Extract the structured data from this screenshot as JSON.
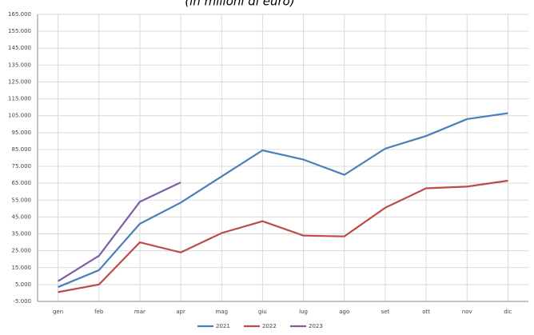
{
  "chart_data": {
    "type": "line",
    "title": "(in milioni di euro)",
    "categories": [
      "gen",
      "feb",
      "mar",
      "apr",
      "mag",
      "giu",
      "lug",
      "ago",
      "set",
      "ott",
      "nov",
      "dic"
    ],
    "series": [
      {
        "name": "2021",
        "color": "#4a7ebb",
        "values": [
          3500,
          13500,
          41000,
          53500,
          69000,
          84500,
          79000,
          70000,
          85500,
          93000,
          103000,
          106500
        ]
      },
      {
        "name": "2022",
        "color": "#be4b48",
        "values": [
          500,
          5000,
          30000,
          24000,
          35500,
          42500,
          34000,
          33500,
          50500,
          62000,
          63000,
          66500
        ]
      },
      {
        "name": "2023",
        "color": "#7f5f9f",
        "values": [
          7000,
          22000,
          54000,
          65500,
          null,
          null,
          null,
          null,
          null,
          null,
          null,
          null
        ]
      }
    ],
    "ylim": [
      -5000,
      165000
    ],
    "yticks": [
      {
        "value": -5000,
        "label": "-5.000"
      },
      {
        "value": 5000,
        "label": "5.000"
      },
      {
        "value": 15000,
        "label": "15.000"
      },
      {
        "value": 25000,
        "label": "25.000"
      },
      {
        "value": 35000,
        "label": "35.000"
      },
      {
        "value": 45000,
        "label": "45.000"
      },
      {
        "value": 55000,
        "label": "55.000"
      },
      {
        "value": 65000,
        "label": "65.000"
      },
      {
        "value": 75000,
        "label": "75.000"
      },
      {
        "value": 85000,
        "label": "85.000"
      },
      {
        "value": 95000,
        "label": "95.000"
      },
      {
        "value": 105000,
        "label": "105.000"
      },
      {
        "value": 115000,
        "label": "115.000"
      },
      {
        "value": 125000,
        "label": "125.000"
      },
      {
        "value": 135000,
        "label": "135.000"
      },
      {
        "value": 145000,
        "label": "145.000"
      },
      {
        "value": 155000,
        "label": "155.000"
      },
      {
        "value": 165000,
        "label": "165.000"
      }
    ],
    "grid": true,
    "legend": "bottom"
  }
}
